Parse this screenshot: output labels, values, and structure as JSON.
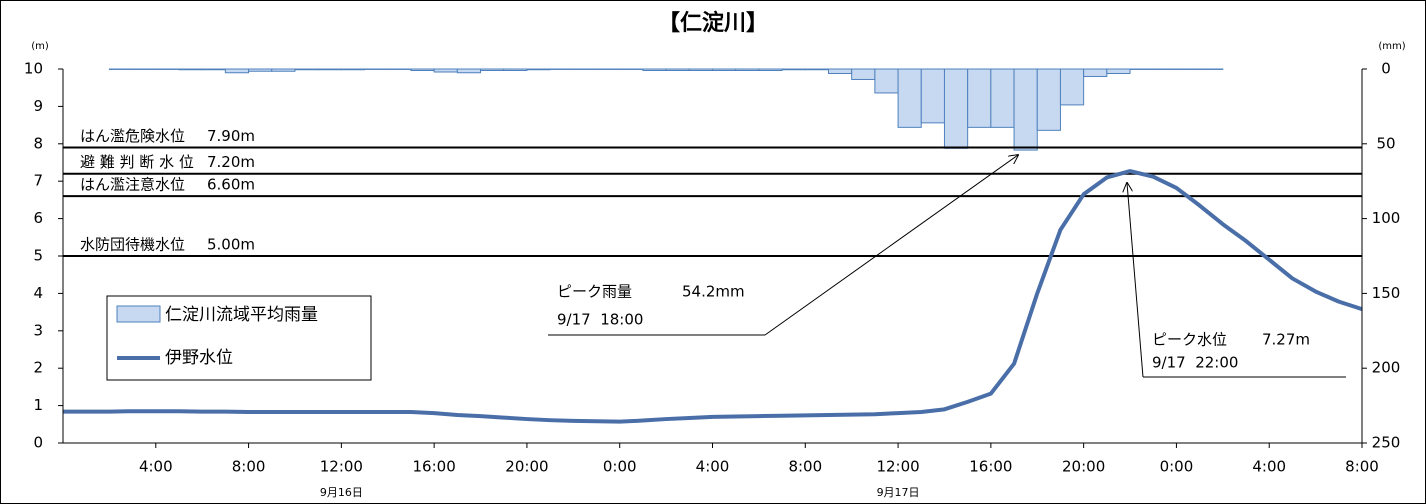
{
  "chart_data": {
    "type": "bar_line",
    "title": "【仁淀川】",
    "y_unit": "(m)",
    "y2_unit": "(mm)",
    "xlim": [
      0,
      56
    ],
    "xticks": [
      {
        "value": 4,
        "label": "4:00"
      },
      {
        "value": 8,
        "label": "8:00"
      },
      {
        "value": 12,
        "label": "12:00"
      },
      {
        "value": 16,
        "label": "16:00"
      },
      {
        "value": 20,
        "label": "20:00"
      },
      {
        "value": 24,
        "label": "0:00"
      },
      {
        "value": 28,
        "label": "4:00"
      },
      {
        "value": 32,
        "label": "8:00"
      },
      {
        "value": 36,
        "label": "12:00"
      },
      {
        "value": 40,
        "label": "16:00"
      },
      {
        "value": 44,
        "label": "20:00"
      },
      {
        "value": 48,
        "label": "0:00"
      },
      {
        "value": 52,
        "label": "4:00"
      },
      {
        "value": 56,
        "label": "8:00"
      }
    ],
    "date_labels": [
      {
        "value": 12,
        "label": "9月16日"
      },
      {
        "value": 36,
        "label": "9月17日"
      }
    ],
    "ylim": [
      0,
      10
    ],
    "yticks": [
      0,
      1,
      2,
      3,
      4,
      5,
      6,
      7,
      8,
      9,
      10
    ],
    "y2lim": [
      0,
      250
    ],
    "y2ticks": [
      0,
      50,
      100,
      150,
      200,
      250
    ],
    "y2_inverted": true,
    "reference_lines": [
      {
        "label": "はん濫危険水位",
        "value": 7.9,
        "value_label": "7.90m"
      },
      {
        "label": "避 難 判 断 水 位",
        "value": 7.2,
        "value_label": "7.20m"
      },
      {
        "label": "はん濫注意水位",
        "value": 6.6,
        "value_label": "6.60m"
      },
      {
        "label": "水防団待機水位",
        "value": 5.0,
        "value_label": "5.00m"
      }
    ],
    "annotations": [
      {
        "text": "ピーク雨量",
        "value_label": "54.2mm",
        "date": "9/17  18:00"
      },
      {
        "text": "ピーク水位",
        "value_label": "7.27m",
        "date": "9/17  22:00"
      }
    ],
    "series": [
      {
        "name": "仁淀川流域平均雨量",
        "type": "bar",
        "axis": "y2",
        "color": "#c6d9f1",
        "stroke": "#4f81bd",
        "x": [
          3,
          4,
          5,
          6,
          7,
          8,
          9,
          10,
          11,
          12,
          13,
          14,
          15,
          16,
          17,
          18,
          19,
          20,
          21,
          22,
          23,
          24,
          25,
          26,
          27,
          28,
          29,
          30,
          31,
          32,
          33,
          34,
          35,
          36,
          37,
          38,
          39,
          40,
          41,
          42,
          43,
          44,
          45,
          46,
          47,
          48,
          49,
          50
        ],
        "values": [
          0.3,
          0.3,
          0.3,
          0.5,
          0.5,
          2.5,
          1.5,
          1.5,
          0.5,
          0.5,
          0.5,
          0.3,
          0.3,
          1,
          2,
          2.5,
          1,
          1,
          0.5,
          0.3,
          0.3,
          0.3,
          0.3,
          1,
          1,
          1,
          1,
          1,
          1,
          0.5,
          0.5,
          3,
          7,
          16,
          39,
          36,
          53,
          39,
          39,
          54.2,
          41,
          24,
          5,
          3,
          0.3,
          0.3,
          0.3,
          0.3
        ]
      },
      {
        "name": "伊野水位",
        "type": "line",
        "color": "#4a6fa8",
        "x": [
          0,
          1,
          2,
          3,
          4,
          5,
          6,
          7,
          8,
          9,
          10,
          11,
          12,
          13,
          14,
          15,
          16,
          17,
          18,
          19,
          20,
          21,
          22,
          23,
          24,
          25,
          26,
          27,
          28,
          29,
          30,
          31,
          32,
          33,
          34,
          35,
          36,
          37,
          38,
          39,
          40,
          41,
          42,
          43,
          44,
          45,
          46,
          47,
          48,
          49,
          50,
          51,
          52,
          53,
          54,
          55,
          56
        ],
        "values": [
          0.84,
          0.84,
          0.84,
          0.85,
          0.85,
          0.85,
          0.84,
          0.84,
          0.83,
          0.83,
          0.83,
          0.83,
          0.83,
          0.83,
          0.83,
          0.83,
          0.8,
          0.75,
          0.72,
          0.68,
          0.64,
          0.61,
          0.59,
          0.58,
          0.57,
          0.6,
          0.64,
          0.67,
          0.7,
          0.71,
          0.72,
          0.73,
          0.74,
          0.75,
          0.76,
          0.77,
          0.8,
          0.83,
          0.9,
          1.1,
          1.32,
          2.12,
          4.0,
          5.7,
          6.65,
          7.1,
          7.27,
          7.12,
          6.82,
          6.35,
          5.85,
          5.4,
          4.9,
          4.4,
          4.05,
          3.78,
          3.58
        ]
      }
    ]
  }
}
